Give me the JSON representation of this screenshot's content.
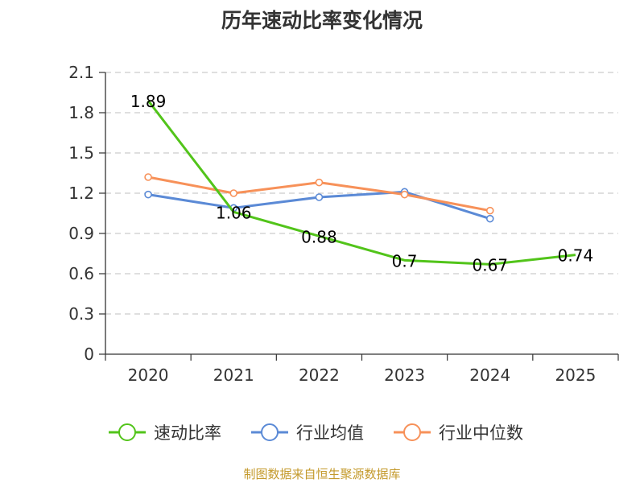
{
  "chart_data": {
    "type": "line",
    "title": "历年速动比率变化情况",
    "categories": [
      "2020",
      "2021",
      "2022",
      "2023",
      "2024",
      "2025"
    ],
    "ylim": [
      0,
      2.1
    ],
    "yticks": [
      "0",
      "0.3",
      "0.6",
      "0.9",
      "1.2",
      "1.5",
      "1.8",
      "2.1"
    ],
    "series": [
      {
        "name": "速动比率",
        "color": "#52c41a",
        "values": [
          1.89,
          1.06,
          0.88,
          0.7,
          0.67,
          0.74
        ],
        "labels": [
          "1.89",
          "1.06",
          "0.88",
          "0.7",
          "0.67",
          "0.74"
        ]
      },
      {
        "name": "行业均值",
        "color": "#5b8ad6",
        "values": [
          1.19,
          1.09,
          1.17,
          1.21,
          1.01,
          null
        ]
      },
      {
        "name": "行业中位数",
        "color": "#f79159",
        "values": [
          1.32,
          1.2,
          1.28,
          1.19,
          1.07,
          null
        ]
      }
    ],
    "grid": true,
    "legend": "bottom"
  },
  "footer": {
    "source": "制图数据来自恒生聚源数据库"
  }
}
